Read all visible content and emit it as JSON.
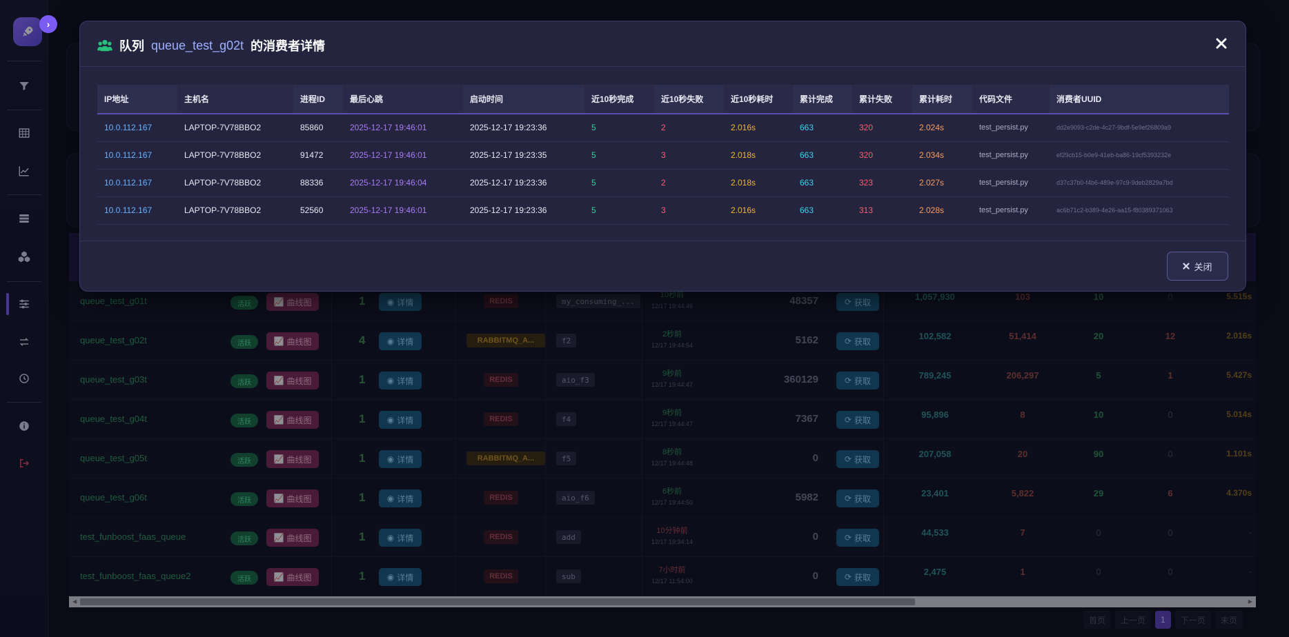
{
  "sidebar": {
    "items": [
      {
        "name": "filter-icon"
      },
      {
        "name": "table-icon"
      },
      {
        "name": "chart-line-icon"
      },
      {
        "name": "server-icon"
      },
      {
        "name": "cubes-icon"
      },
      {
        "name": "sliders-icon",
        "active": true
      },
      {
        "name": "exchange-icon"
      },
      {
        "name": "history-icon"
      },
      {
        "name": "info-icon"
      },
      {
        "name": "sign-out-icon"
      }
    ]
  },
  "queue_table": {
    "active_label": "活跃",
    "curve_label": "曲线图",
    "detail_label": "详情",
    "fetch_label": "获取",
    "rows": [
      {
        "name": "queue_test_g01t",
        "consumers": "1",
        "broker": "REDIS",
        "func": "my_consuming_...",
        "heartbeat": "10秒前",
        "heartbeat_time": "12/17 19:44:46",
        "msg_count": "48357",
        "total_done": "1,057,930",
        "total_fail": "103",
        "done_10s": "10",
        "fail_10s": "0",
        "avg": "5.515s"
      },
      {
        "name": "queue_test_g02t",
        "consumers": "4",
        "broker": "RABBITMQ_A...",
        "func": "f2",
        "heartbeat": "2秒前",
        "heartbeat_time": "12/17 19:44:54",
        "msg_count": "5162",
        "total_done": "102,582",
        "total_fail": "51,414",
        "done_10s": "20",
        "fail_10s": "12",
        "avg": "2.016s"
      },
      {
        "name": "queue_test_g03t",
        "consumers": "1",
        "broker": "REDIS",
        "func": "aio_f3",
        "heartbeat": "9秒前",
        "heartbeat_time": "12/17 19:44:47",
        "msg_count": "360129",
        "total_done": "789,245",
        "total_fail": "206,297",
        "done_10s": "5",
        "fail_10s": "1",
        "avg": "5.427s"
      },
      {
        "name": "queue_test_g04t",
        "consumers": "1",
        "broker": "REDIS",
        "func": "f4",
        "heartbeat": "9秒前",
        "heartbeat_time": "12/17 19:44:47",
        "msg_count": "7367",
        "total_done": "95,896",
        "total_fail": "8",
        "done_10s": "10",
        "fail_10s": "0",
        "avg": "5.014s"
      },
      {
        "name": "queue_test_g05t",
        "consumers": "1",
        "broker": "RABBITMQ_A...",
        "func": "f5",
        "heartbeat": "8秒前",
        "heartbeat_time": "12/17 19:44:48",
        "msg_count": "0",
        "total_done": "207,058",
        "total_fail": "20",
        "done_10s": "90",
        "fail_10s": "0",
        "avg": "1.101s"
      },
      {
        "name": "queue_test_g06t",
        "consumers": "1",
        "broker": "REDIS",
        "func": "aio_f6",
        "heartbeat": "6秒前",
        "heartbeat_time": "12/17 19:44:50",
        "msg_count": "5982",
        "total_done": "23,401",
        "total_fail": "5,822",
        "done_10s": "29",
        "fail_10s": "6",
        "avg": "4.370s"
      },
      {
        "name": "test_funboost_faas_queue",
        "consumers": "1",
        "broker": "REDIS",
        "func": "add",
        "heartbeat": "10分钟前",
        "heartbeat_time": "12/17 19:34:14",
        "msg_count": "0",
        "total_done": "44,533",
        "total_fail": "7",
        "done_10s": "0",
        "fail_10s": "0",
        "avg": "-"
      },
      {
        "name": "test_funboost_faas_queue2",
        "consumers": "1",
        "broker": "REDIS",
        "func": "sub",
        "heartbeat": "7小时前",
        "heartbeat_time": "12/17 11:54:00",
        "msg_count": "0",
        "total_done": "2,475",
        "total_fail": "1",
        "done_10s": "0",
        "fail_10s": "0",
        "avg": "-"
      }
    ]
  },
  "pagination": {
    "first": "首页",
    "prev": "上一页",
    "current": "1",
    "next": "下一页",
    "last": "末页"
  },
  "modal": {
    "title_prefix": "队列",
    "queue_name": "queue_test_g02t",
    "title_suffix": "的消费者详情",
    "close_label": "关闭",
    "columns": [
      "IP地址",
      "主机名",
      "进程ID",
      "最后心跳",
      "启动时间",
      "近10秒完成",
      "近10秒失败",
      "近10秒耗时",
      "累计完成",
      "累计失败",
      "累计耗时",
      "代码文件",
      "消费者UUID"
    ],
    "rows": [
      {
        "ip": "10.0.112.167",
        "host": "LAPTOP-7V78BBO2",
        "pid": "85860",
        "heartbeat": "2025-12-17 19:46:01",
        "start": "2025-12-17 19:23:36",
        "done_10s": "5",
        "fail_10s": "2",
        "cost_10s": "2.016s",
        "total_done": "663",
        "total_fail": "320",
        "total_cost": "2.024s",
        "file": "test_persist.py",
        "uuid": "dd2e9093-c2de-4c27-9bdf-5e9ef26809a9"
      },
      {
        "ip": "10.0.112.167",
        "host": "LAPTOP-7V78BBO2",
        "pid": "91472",
        "heartbeat": "2025-12-17 19:46:01",
        "start": "2025-12-17 19:23:35",
        "done_10s": "5",
        "fail_10s": "3",
        "cost_10s": "2.018s",
        "total_done": "663",
        "total_fail": "320",
        "total_cost": "2.034s",
        "file": "test_persist.py",
        "uuid": "ef29cb15-b0e9-41eb-ba86-19cf5393232e"
      },
      {
        "ip": "10.0.112.167",
        "host": "LAPTOP-7V78BBO2",
        "pid": "88336",
        "heartbeat": "2025-12-17 19:46:04",
        "start": "2025-12-17 19:23:36",
        "done_10s": "5",
        "fail_10s": "2",
        "cost_10s": "2.018s",
        "total_done": "663",
        "total_fail": "323",
        "total_cost": "2.027s",
        "file": "test_persist.py",
        "uuid": "d37c37b0-f4b6-489e-97c9-9deb2829a7bd"
      },
      {
        "ip": "10.0.112.167",
        "host": "LAPTOP-7V78BBO2",
        "pid": "52560",
        "heartbeat": "2025-12-17 19:46:01",
        "start": "2025-12-17 19:23:36",
        "done_10s": "5",
        "fail_10s": "3",
        "cost_10s": "2.016s",
        "total_done": "663",
        "total_fail": "313",
        "total_cost": "2.028s",
        "file": "test_persist.py",
        "uuid": "ac6b71c2-b389-4e26-aa15-f80389371063"
      }
    ]
  },
  "colors": {
    "accent": "#7a5cf4",
    "ip": "#69b2ff",
    "heartbeat": "#a97cf7",
    "success": "#33d39a",
    "fail": "#ff5d6c",
    "cost": "#f5b431",
    "total": "#3ed1ee",
    "total_cost": "#ff9b5c"
  }
}
